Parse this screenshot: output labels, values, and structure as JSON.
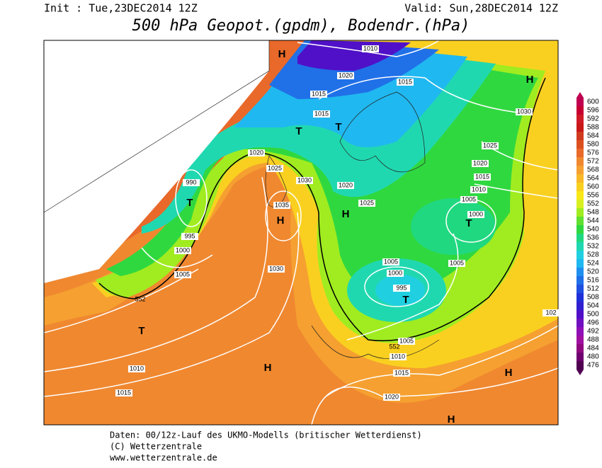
{
  "header": {
    "init": "Init : Tue,23DEC2014 12Z",
    "valid": "Valid: Sun,28DEC2014 12Z",
    "title": "500 hPa Geopot.(gpdm), Bodendr.(hPa)"
  },
  "map": {
    "isobar_labels": [
      1010,
      1015,
      1020,
      1015,
      1015,
      1030,
      1025,
      1020,
      1015,
      1010,
      1005,
      1000,
      1020,
      1025,
      1030,
      1020,
      1025,
      1035,
      990,
      995,
      1000,
      1005,
      1030,
      1005,
      1000,
      995,
      1005,
      1005,
      1010,
      1015,
      1020,
      1010,
      1015,
      "102"
    ],
    "contour_labels": [
      552,
      552
    ],
    "highs": [
      "H",
      "H",
      "H",
      "H",
      "H",
      "H",
      "H"
    ],
    "lows": [
      "T",
      "T",
      "T",
      "T",
      "T",
      "T"
    ]
  },
  "legend": {
    "levels": [
      600,
      596,
      592,
      588,
      584,
      580,
      576,
      572,
      568,
      564,
      560,
      556,
      552,
      548,
      544,
      540,
      536,
      532,
      528,
      524,
      520,
      516,
      512,
      508,
      504,
      500,
      496,
      492,
      488,
      484,
      480,
      476
    ],
    "colors": [
      "#c00050",
      "#c80032",
      "#d01a28",
      "#c81818",
      "#d03a1f",
      "#dc5020",
      "#e8692a",
      "#f08830",
      "#f5a030",
      "#f8b828",
      "#fad020",
      "#f8e818",
      "#d8f020",
      "#a0ec20",
      "#60e030",
      "#30d840",
      "#20d880",
      "#20d8b0",
      "#20d0e0",
      "#20b8f0",
      "#2090f0",
      "#2070e8",
      "#2050e0",
      "#2030d8",
      "#3020d0",
      "#5010c8",
      "#7010c0",
      "#9010b8",
      "#a010a0",
      "#900880",
      "#700070",
      "#500050"
    ]
  },
  "footer": {
    "line1": "Daten: 00/12z-Lauf des UKMO-Modells (britischer Wetterdienst)",
    "line2": "(C) Wetterzentrale",
    "line3": "www.wetterzentrale.de"
  }
}
